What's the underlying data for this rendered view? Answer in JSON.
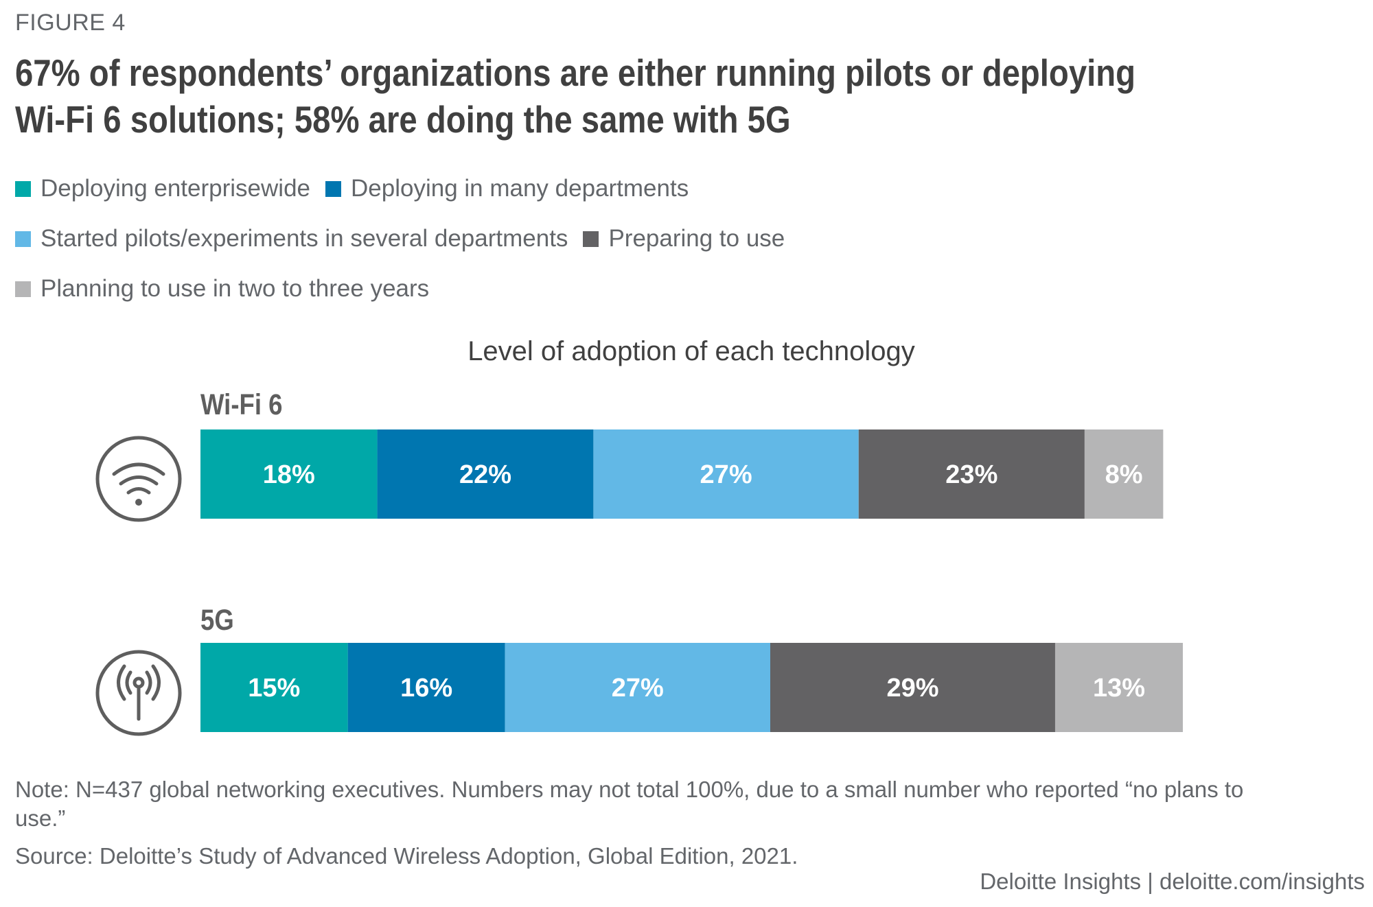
{
  "figure_label": "FIGURE 4",
  "title_lines": [
    "67% of respondents’ organizations are either running pilots or deploying",
    "Wi-Fi 6 solutions; 58% are doing the same with 5G"
  ],
  "note": "Note: N=437 global networking executives. Numbers may not total 100%, due to a small number who reported “no plans to use.”",
  "source": "Source: Deloitte’s Study of Advanced Wireless Adoption, Global Edition, 2021.",
  "footer": "Deloitte Insights | deloitte.com/insights",
  "icons": {
    "wifi": "wifi-icon",
    "5g": "antenna-signal-icon"
  },
  "chart_data": {
    "type": "bar",
    "orientation": "horizontal-stacked",
    "title": "Level of adoption of each technology",
    "xlabel": "",
    "ylabel": "",
    "unit": "%",
    "categories": [
      "Wi-Fi 6",
      "5G"
    ],
    "legend_position": "top-left",
    "grid": false,
    "series": [
      {
        "name": "Deploying enterprisewide",
        "color": "#00a8a8",
        "values": [
          18,
          15
        ]
      },
      {
        "name": "Deploying in many departments",
        "color": "#0076b0",
        "values": [
          22,
          16
        ]
      },
      {
        "name": "Started pilots/experiments in several departments",
        "color": "#62b8e6",
        "values": [
          27,
          27
        ]
      },
      {
        "name": "Preparing to use",
        "color": "#636264",
        "values": [
          23,
          29
        ]
      },
      {
        "name": "Planning to use in two to three years",
        "color": "#b5b5b6",
        "values": [
          8,
          13
        ]
      }
    ]
  }
}
